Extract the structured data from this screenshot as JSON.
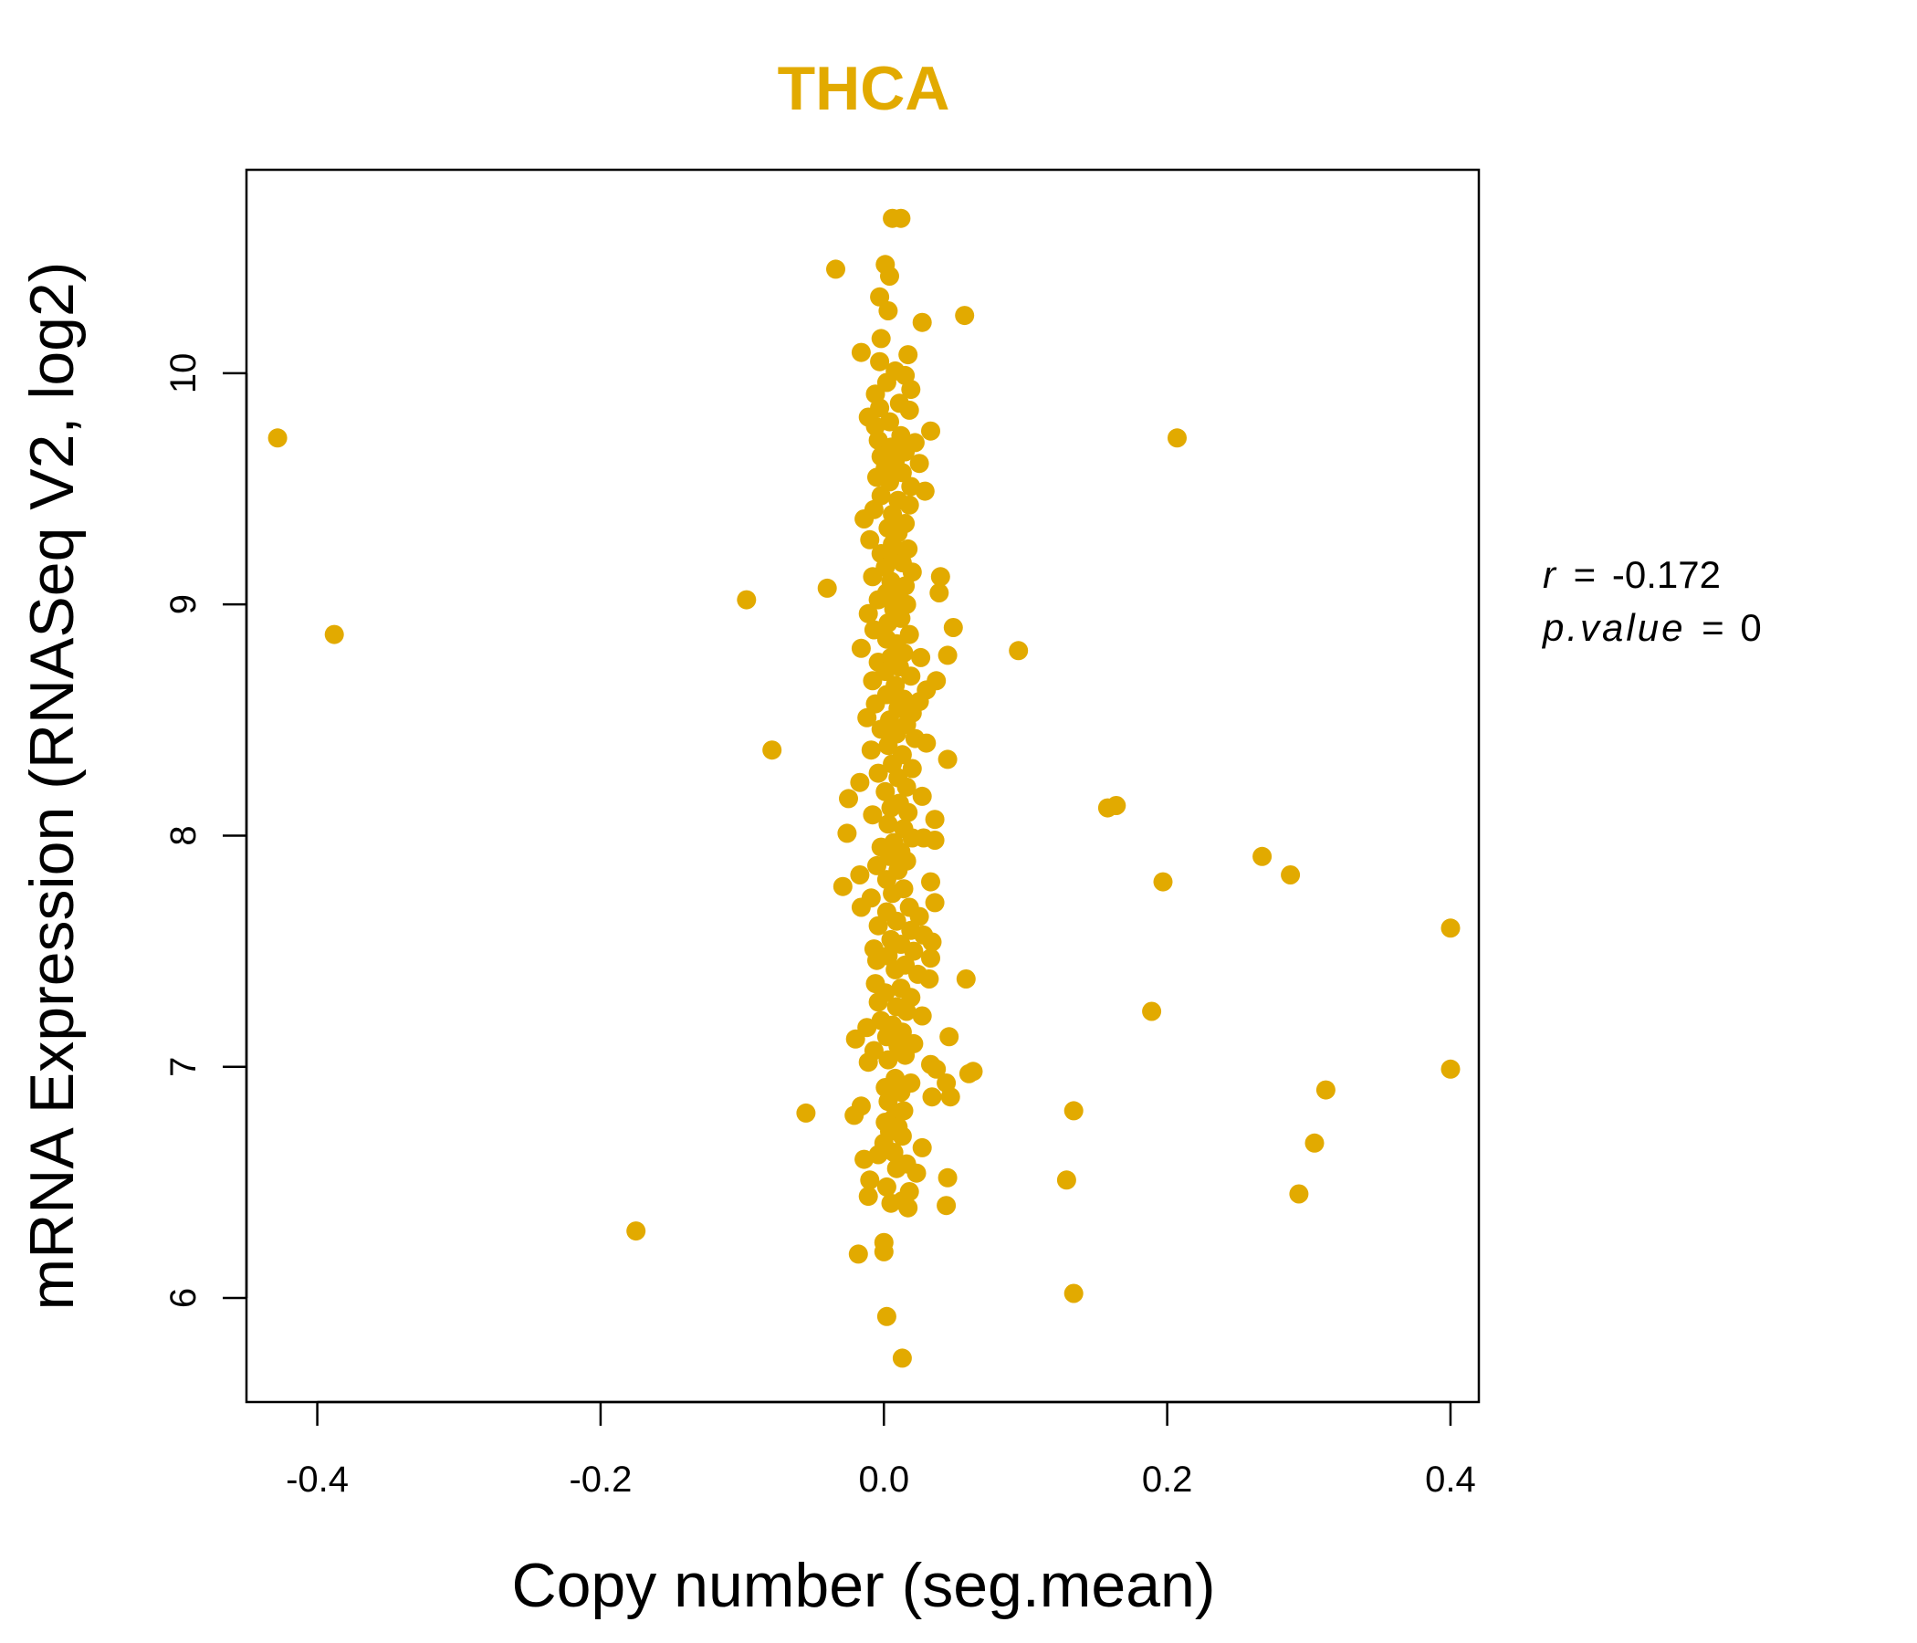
{
  "chart_data": {
    "type": "scatter",
    "title": "THCA",
    "xlabel": "Copy number (seg.mean)",
    "ylabel": "mRNA Expression (RNASeq V2, log2)",
    "xlim": [
      -0.45,
      0.42
    ],
    "ylim": [
      5.55,
      10.88
    ],
    "x_ticks": [
      -0.4,
      -0.2,
      0.0,
      0.2,
      0.4
    ],
    "x_tick_labels": [
      "-0.4",
      "-0.2",
      "0.0",
      "0.2",
      "0.4"
    ],
    "y_ticks": [
      6,
      7,
      8,
      9,
      10
    ],
    "y_tick_labels": [
      "6",
      "7",
      "8",
      "9",
      "10"
    ],
    "grid": false,
    "colors": {
      "points": "#E2AA00",
      "title": "#E2AA00",
      "axis": "#000000"
    },
    "annotation": {
      "r_label": "r",
      "r_value": "-0.172",
      "p_label": "p.value",
      "p_value": "0",
      "eq": "="
    },
    "points": [
      [
        0.006,
        10.67
      ],
      [
        0.012,
        10.67
      ],
      [
        -0.034,
        10.45
      ],
      [
        0.001,
        10.47
      ],
      [
        0.004,
        10.42
      ],
      [
        0.057,
        10.25
      ],
      [
        0.027,
        10.22
      ],
      [
        -0.003,
        10.33
      ],
      [
        0.003,
        10.27
      ],
      [
        -0.002,
        10.15
      ],
      [
        -0.016,
        10.09
      ],
      [
        0.017,
        10.08
      ],
      [
        -0.003,
        10.05
      ],
      [
        0.008,
        10.01
      ],
      [
        0.015,
        9.99
      ],
      [
        0.002,
        9.96
      ],
      [
        0.019,
        9.93
      ],
      [
        -0.006,
        9.91
      ],
      [
        0.011,
        9.87
      ],
      [
        -0.003,
        9.85
      ],
      [
        0.018,
        9.84
      ],
      [
        -0.011,
        9.81
      ],
      [
        0.004,
        9.79
      ],
      [
        -0.006,
        9.77
      ],
      [
        0.033,
        9.75
      ],
      [
        0.012,
        9.73
      ],
      [
        -0.004,
        9.71
      ],
      [
        0.022,
        9.7
      ],
      [
        0.005,
        9.68
      ],
      [
        0.015,
        9.66
      ],
      [
        -0.002,
        9.64
      ],
      [
        0.008,
        9.62
      ],
      [
        0.025,
        9.61
      ],
      [
        0.001,
        9.59
      ],
      [
        0.013,
        9.57
      ],
      [
        -0.005,
        9.55
      ],
      [
        0.004,
        9.53
      ],
      [
        0.019,
        9.51
      ],
      [
        0.029,
        9.49
      ],
      [
        -0.002,
        9.47
      ],
      [
        0.01,
        9.45
      ],
      [
        0.018,
        9.43
      ],
      [
        -0.007,
        9.41
      ],
      [
        0.006,
        9.39
      ],
      [
        -0.014,
        9.37
      ],
      [
        0.015,
        9.35
      ],
      [
        0.003,
        9.33
      ],
      [
        0.01,
        9.31
      ],
      [
        -0.01,
        9.28
      ],
      [
        0.006,
        9.26
      ],
      [
        0.017,
        9.24
      ],
      [
        -0.002,
        9.22
      ],
      [
        0.008,
        9.2
      ],
      [
        0.013,
        9.18
      ],
      [
        0.001,
        9.16
      ],
      [
        0.02,
        9.14
      ],
      [
        -0.008,
        9.12
      ],
      [
        0.04,
        9.12
      ],
      [
        0.005,
        9.1
      ],
      [
        0.015,
        9.08
      ],
      [
        -0.04,
        9.07
      ],
      [
        0.002,
        9.05
      ],
      [
        0.039,
        9.05
      ],
      [
        0.01,
        9.04
      ],
      [
        -0.004,
        9.02
      ],
      [
        0.016,
        9.0
      ],
      [
        0.007,
        8.98
      ],
      [
        -0.011,
        8.96
      ],
      [
        0.012,
        8.94
      ],
      [
        0.003,
        8.92
      ],
      [
        0.049,
        8.9
      ],
      [
        -0.007,
        8.89
      ],
      [
        0.018,
        8.87
      ],
      [
        0.002,
        8.85
      ],
      [
        0.009,
        8.83
      ],
      [
        -0.016,
        8.81
      ],
      [
        0.045,
        8.78
      ],
      [
        0.095,
        8.8
      ],
      [
        0.014,
        8.79
      ],
      [
        0.005,
        8.77
      ],
      [
        0.026,
        8.77
      ],
      [
        -0.004,
        8.75
      ],
      [
        0.011,
        8.73
      ],
      [
        0.001,
        8.71
      ],
      [
        0.019,
        8.69
      ],
      [
        -0.008,
        8.67
      ],
      [
        0.037,
        8.67
      ],
      [
        0.008,
        8.65
      ],
      [
        0.03,
        8.63
      ],
      [
        0.002,
        8.61
      ],
      [
        0.014,
        8.59
      ],
      [
        0.025,
        8.58
      ],
      [
        -0.006,
        8.57
      ],
      [
        0.01,
        8.55
      ],
      [
        0.02,
        8.53
      ],
      [
        -0.012,
        8.51
      ],
      [
        0.004,
        8.5
      ],
      [
        0.016,
        8.48
      ],
      [
        -0.002,
        8.46
      ],
      [
        0.009,
        8.44
      ],
      [
        0.022,
        8.42
      ],
      [
        0.03,
        8.4
      ],
      [
        0.003,
        8.39
      ],
      [
        -0.009,
        8.37
      ],
      [
        0.013,
        8.35
      ],
      [
        0.045,
        8.33
      ],
      [
        0.006,
        8.31
      ],
      [
        0.02,
        8.29
      ],
      [
        -0.004,
        8.27
      ],
      [
        0.01,
        8.25
      ],
      [
        -0.017,
        8.23
      ],
      [
        0.016,
        8.21
      ],
      [
        0.001,
        8.19
      ],
      [
        0.027,
        8.17
      ],
      [
        -0.025,
        8.16
      ],
      [
        0.011,
        8.14
      ],
      [
        0.005,
        8.12
      ],
      [
        0.017,
        8.1
      ],
      [
        -0.008,
        8.09
      ],
      [
        0.036,
        8.07
      ],
      [
        0.003,
        8.05
      ],
      [
        0.014,
        8.03
      ],
      [
        -0.026,
        8.01
      ],
      [
        0.02,
        7.99
      ],
      [
        0.028,
        7.99
      ],
      [
        0.036,
        7.98
      ],
      [
        0.007,
        7.97
      ],
      [
        -0.002,
        7.95
      ],
      [
        0.012,
        7.93
      ],
      [
        0.004,
        7.91
      ],
      [
        0.016,
        7.89
      ],
      [
        -0.005,
        7.87
      ],
      [
        0.01,
        7.85
      ],
      [
        -0.017,
        7.83
      ],
      [
        0.002,
        7.81
      ],
      [
        0.033,
        7.8
      ],
      [
        -0.029,
        7.78
      ],
      [
        0.014,
        7.77
      ],
      [
        0.006,
        7.75
      ],
      [
        -0.009,
        7.73
      ],
      [
        0.036,
        7.71
      ],
      [
        0.018,
        7.69
      ],
      [
        -0.016,
        7.69
      ],
      [
        0.002,
        7.67
      ],
      [
        0.025,
        7.65
      ],
      [
        0.009,
        7.63
      ],
      [
        -0.004,
        7.61
      ],
      [
        0.019,
        7.59
      ],
      [
        0.028,
        7.57
      ],
      [
        0.005,
        7.55
      ],
      [
        0.034,
        7.54
      ],
      [
        0.012,
        7.53
      ],
      [
        -0.007,
        7.51
      ],
      [
        0.021,
        7.5
      ],
      [
        0.003,
        7.48
      ],
      [
        0.033,
        7.47
      ],
      [
        -0.005,
        7.46
      ],
      [
        0.015,
        7.44
      ],
      [
        0.008,
        7.42
      ],
      [
        0.024,
        7.4
      ],
      [
        0.058,
        7.38
      ],
      [
        0.032,
        7.38
      ],
      [
        -0.006,
        7.36
      ],
      [
        0.012,
        7.34
      ],
      [
        0.001,
        7.32
      ],
      [
        0.019,
        7.3
      ],
      [
        -0.004,
        7.28
      ],
      [
        0.009,
        7.26
      ],
      [
        0.016,
        7.24
      ],
      [
        0.027,
        7.22
      ],
      [
        -0.002,
        7.2
      ],
      [
        0.006,
        7.18
      ],
      [
        -0.012,
        7.17
      ],
      [
        0.013,
        7.15
      ],
      [
        0.046,
        7.13
      ],
      [
        0.002,
        7.13
      ],
      [
        -0.02,
        7.12
      ],
      [
        0.021,
        7.1
      ],
      [
        0.01,
        7.09
      ],
      [
        -0.007,
        7.07
      ],
      [
        0.015,
        7.05
      ],
      [
        0.003,
        7.03
      ],
      [
        -0.011,
        7.02
      ],
      [
        0.033,
        7.01
      ],
      [
        0.037,
        6.99
      ],
      [
        0.06,
        6.97
      ],
      [
        0.063,
        6.98
      ],
      [
        0.008,
        6.95
      ],
      [
        0.019,
        6.93
      ],
      [
        0.044,
        6.93
      ],
      [
        0.001,
        6.91
      ],
      [
        0.012,
        6.89
      ],
      [
        0.034,
        6.87
      ],
      [
        0.047,
        6.87
      ],
      [
        0.003,
        6.85
      ],
      [
        -0.016,
        6.83
      ],
      [
        0.014,
        6.81
      ],
      [
        -0.021,
        6.79
      ],
      [
        0.007,
        6.78
      ],
      [
        -0.055,
        6.8
      ],
      [
        0.001,
        6.76
      ],
      [
        0.01,
        6.74
      ],
      [
        0.004,
        6.72
      ],
      [
        0.013,
        6.7
      ],
      [
        0.0,
        6.67
      ],
      [
        0.027,
        6.65
      ],
      [
        0.007,
        6.63
      ],
      [
        -0.004,
        6.62
      ],
      [
        -0.014,
        6.6
      ],
      [
        0.016,
        6.58
      ],
      [
        0.009,
        6.56
      ],
      [
        0.023,
        6.54
      ],
      [
        0.045,
        6.52
      ],
      [
        -0.01,
        6.51
      ],
      [
        0.002,
        6.48
      ],
      [
        0.018,
        6.46
      ],
      [
        -0.011,
        6.44
      ],
      [
        0.013,
        6.42
      ],
      [
        0.005,
        6.41
      ],
      [
        0.044,
        6.4
      ],
      [
        0.017,
        6.39
      ],
      [
        0.0,
        6.24
      ],
      [
        -0.018,
        6.19
      ],
      [
        0.0,
        6.2
      ],
      [
        -0.175,
        6.29
      ],
      [
        0.002,
        5.92
      ],
      [
        0.013,
        5.74
      ],
      [
        -0.428,
        9.72
      ],
      [
        -0.388,
        8.87
      ],
      [
        -0.097,
        9.02
      ],
      [
        -0.079,
        8.37
      ],
      [
        0.207,
        9.72
      ],
      [
        0.158,
        8.12
      ],
      [
        0.164,
        8.13
      ],
      [
        0.267,
        7.91
      ],
      [
        0.287,
        7.83
      ],
      [
        0.197,
        7.8
      ],
      [
        0.4,
        7.6
      ],
      [
        0.189,
        7.24
      ],
      [
        0.4,
        6.99
      ],
      [
        0.312,
        6.9
      ],
      [
        0.134,
        6.81
      ],
      [
        0.304,
        6.67
      ],
      [
        0.129,
        6.51
      ],
      [
        0.293,
        6.45
      ],
      [
        0.134,
        6.02
      ]
    ]
  }
}
